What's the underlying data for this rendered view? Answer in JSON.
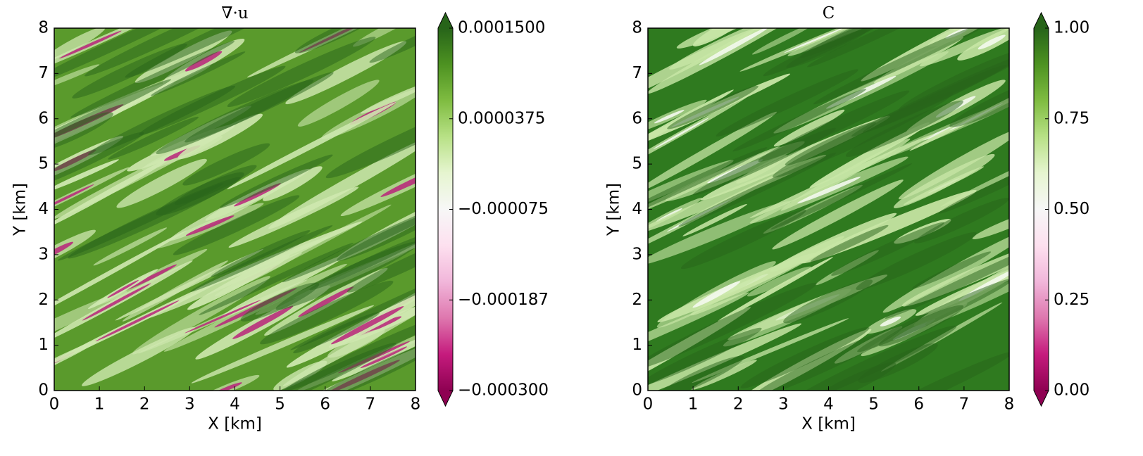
{
  "chart_data": [
    {
      "type": "heatmap",
      "title": "∇·u",
      "xlabel": "X [km]",
      "ylabel": "Y [km]",
      "xlim": [
        0,
        8
      ],
      "ylim": [
        0,
        8
      ],
      "xticks": [
        0,
        1,
        2,
        3,
        4,
        5,
        6,
        7,
        8
      ],
      "yticks": [
        0,
        1,
        2,
        3,
        4,
        5,
        6,
        7,
        8
      ],
      "clim": [
        -0.0003,
        0.00015
      ],
      "cticks": [
        {
          "value": -0.0003,
          "label": "−0.000300"
        },
        {
          "value": -0.0001875,
          "label": "−0.000187"
        },
        {
          "value": -7.5e-05,
          "label": "−0.000075"
        },
        {
          "value": 3.75e-05,
          "label": "0.0000375"
        },
        {
          "value": 0.00015,
          "label": "0.0001500"
        }
      ],
      "colormap": [
        "#8e0152",
        "#c51b7d",
        "#de77ae",
        "#f1b6da",
        "#fde0ef",
        "#f7f7f7",
        "#e6f5d0",
        "#b8e186",
        "#7fbc41",
        "#4d9221",
        "#276419"
      ]
    },
    {
      "type": "heatmap",
      "title": "C",
      "xlabel": "X [km]",
      "ylabel": "Y [km]",
      "xlim": [
        0,
        8
      ],
      "ylim": [
        0,
        8
      ],
      "xticks": [
        0,
        1,
        2,
        3,
        4,
        5,
        6,
        7,
        8
      ],
      "yticks": [
        0,
        1,
        2,
        3,
        4,
        5,
        6,
        7,
        8
      ],
      "clim": [
        0,
        1
      ],
      "cticks": [
        {
          "value": 0,
          "label": "0.00"
        },
        {
          "value": 0.25,
          "label": "0.25"
        },
        {
          "value": 0.5,
          "label": "0.50"
        },
        {
          "value": 0.75,
          "label": "0.75"
        },
        {
          "value": 1,
          "label": "1.00"
        }
      ],
      "colormap": [
        "#8e0152",
        "#c51b7d",
        "#de77ae",
        "#f1b6da",
        "#fde0ef",
        "#f7f7f7",
        "#e6f5d0",
        "#b8e186",
        "#7fbc41",
        "#4d9221",
        "#276419"
      ]
    }
  ]
}
